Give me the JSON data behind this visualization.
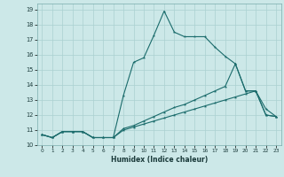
{
  "xlabel": "Humidex (Indice chaleur)",
  "bg_color": "#cce8e8",
  "grid_color": "#aad0d0",
  "line_color": "#1a6b6b",
  "xlim": [
    -0.5,
    23.5
  ],
  "ylim": [
    10,
    19.4
  ],
  "xticks": [
    0,
    1,
    2,
    3,
    4,
    5,
    6,
    7,
    8,
    9,
    10,
    11,
    12,
    13,
    14,
    15,
    16,
    17,
    18,
    19,
    20,
    21,
    22,
    23
  ],
  "yticks": [
    10,
    11,
    12,
    13,
    14,
    15,
    16,
    17,
    18,
    19
  ],
  "line1_x": [
    0,
    1,
    2,
    3,
    4,
    5,
    6,
    7,
    8,
    9,
    10,
    11,
    12,
    13,
    14,
    15,
    16,
    17,
    18,
    19,
    20,
    21,
    22,
    23
  ],
  "line1_y": [
    10.7,
    10.5,
    10.9,
    10.9,
    10.9,
    10.5,
    10.5,
    10.5,
    13.3,
    15.5,
    15.8,
    17.3,
    18.9,
    17.5,
    17.2,
    17.2,
    17.2,
    16.5,
    15.9,
    15.4,
    13.6,
    13.6,
    12.0,
    11.9
  ],
  "line2_x": [
    0,
    1,
    2,
    3,
    4,
    5,
    6,
    7,
    8,
    9,
    10,
    11,
    12,
    13,
    14,
    15,
    16,
    17,
    18,
    19,
    20,
    21,
    22,
    23
  ],
  "line2_y": [
    10.7,
    10.5,
    10.9,
    10.9,
    10.9,
    10.5,
    10.5,
    10.5,
    11.1,
    11.3,
    11.6,
    11.9,
    12.2,
    12.5,
    12.7,
    13.0,
    13.3,
    13.6,
    13.9,
    15.4,
    13.6,
    13.6,
    12.4,
    11.9
  ],
  "line3_x": [
    0,
    1,
    2,
    3,
    4,
    5,
    6,
    7,
    8,
    9,
    10,
    11,
    12,
    13,
    14,
    15,
    16,
    17,
    18,
    19,
    20,
    21,
    22,
    23
  ],
  "line3_y": [
    10.7,
    10.5,
    10.9,
    10.9,
    10.9,
    10.5,
    10.5,
    10.5,
    11.0,
    11.2,
    11.4,
    11.6,
    11.8,
    12.0,
    12.2,
    12.4,
    12.6,
    12.8,
    13.0,
    13.2,
    13.4,
    13.6,
    12.0,
    11.9
  ]
}
